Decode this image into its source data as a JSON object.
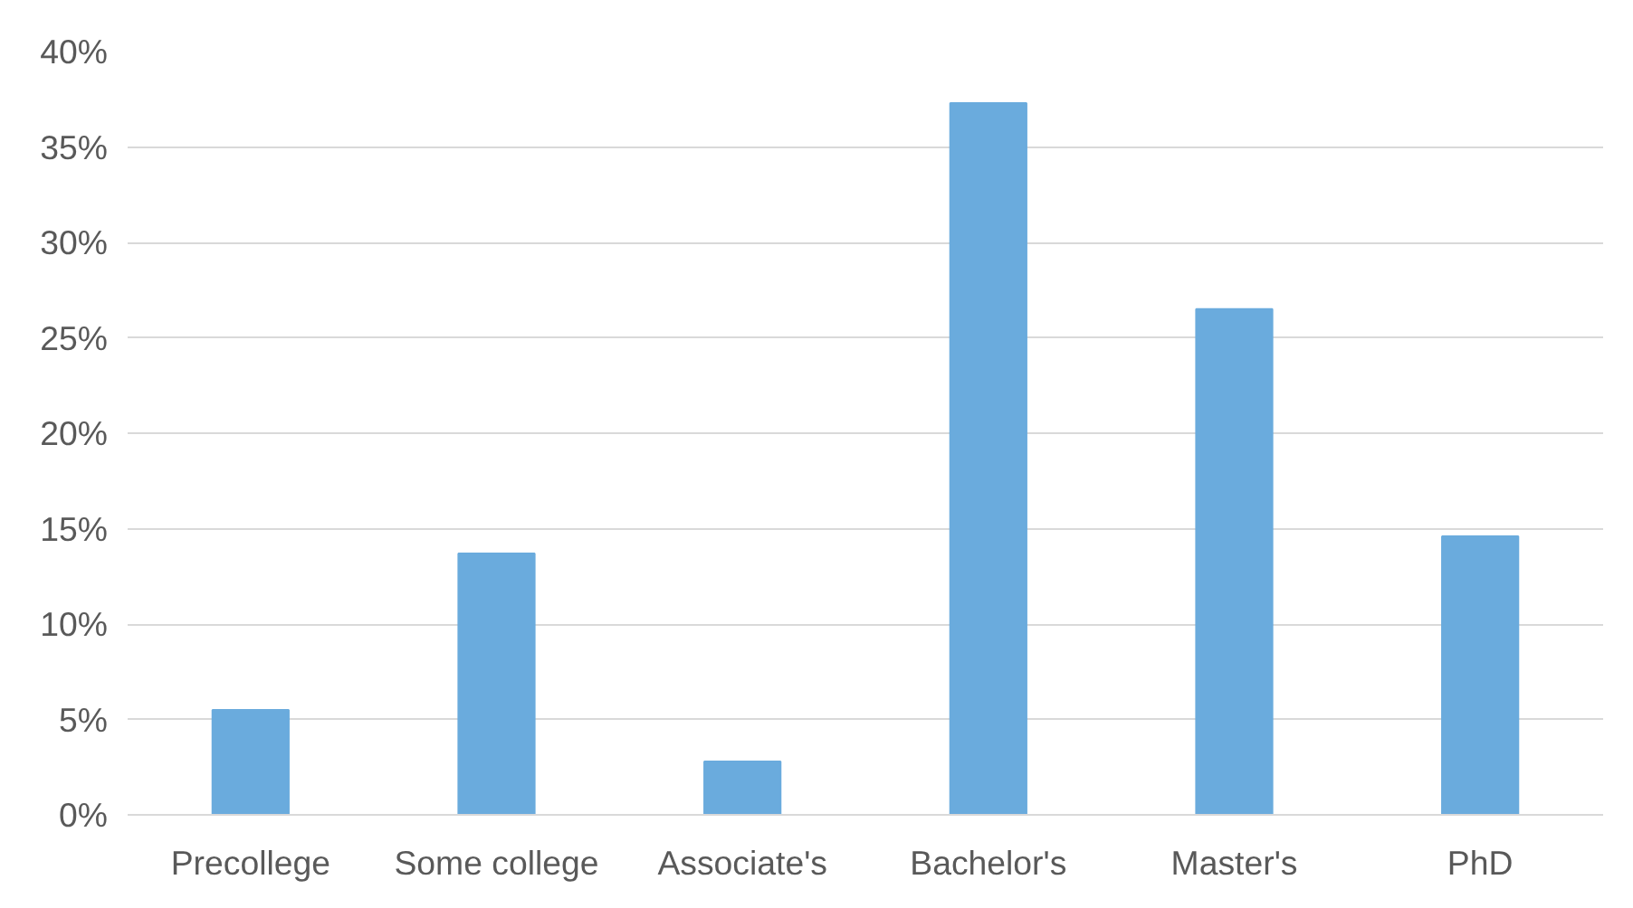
{
  "chart_data": {
    "type": "bar",
    "categories": [
      "Precollege",
      "Some college",
      "Associate's",
      "Bachelor's",
      "Master's",
      "PhD"
    ],
    "values": [
      5.5,
      13.7,
      2.8,
      37.3,
      26.5,
      14.6
    ],
    "color": "#6aabdd",
    "ylim": [
      0,
      40
    ],
    "yticks": [
      {
        "value": 0,
        "label": "0%"
      },
      {
        "value": 5,
        "label": "5%"
      },
      {
        "value": 10,
        "label": "10%"
      },
      {
        "value": 15,
        "label": "15%"
      },
      {
        "value": 20,
        "label": "20%"
      },
      {
        "value": 25,
        "label": "25%"
      },
      {
        "value": 30,
        "label": "30%"
      },
      {
        "value": 35,
        "label": "35%"
      },
      {
        "value": 40,
        "label": "40%"
      }
    ],
    "grid": "y"
  }
}
